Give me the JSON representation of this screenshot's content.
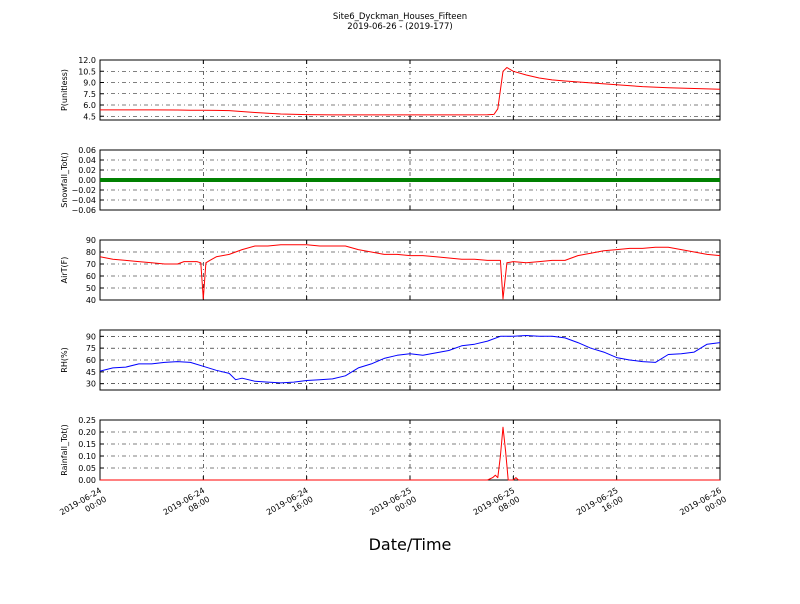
{
  "figure": {
    "title": "Site6_Dyckman_Houses_Fifteen",
    "subtitle": "2019-06-26 - (2019-177)",
    "xlabel": "Date/Time"
  },
  "chart_data": [
    {
      "type": "line",
      "ylabel": "P(unitless)",
      "ylim": [
        4.0,
        12.0
      ],
      "yticks": [
        "12.0",
        "10.5",
        "9.0",
        "7.5",
        "6.0",
        "4.5"
      ],
      "ytick_values": [
        12.0,
        10.5,
        9.0,
        7.5,
        6.0,
        4.5
      ],
      "color": "#ff0000",
      "grid": true,
      "series": [
        {
          "x": [
            0,
            2,
            4,
            6,
            7,
            8,
            9,
            10,
            12,
            14,
            16,
            18,
            20,
            22,
            24,
            26,
            28,
            30,
            30.5,
            30.8,
            31,
            31.2,
            31.5,
            32,
            33,
            34,
            35,
            36,
            38,
            40,
            42,
            44,
            46,
            48
          ],
          "values": [
            5.35,
            5.35,
            5.35,
            5.33,
            5.3,
            5.3,
            5.28,
            5.25,
            5.0,
            4.8,
            4.72,
            4.68,
            4.68,
            4.68,
            4.68,
            4.68,
            4.68,
            4.7,
            4.75,
            5.5,
            8.0,
            10.5,
            11.0,
            10.5,
            10.0,
            9.6,
            9.35,
            9.2,
            8.95,
            8.7,
            8.45,
            8.3,
            8.2,
            8.1
          ]
        }
      ]
    },
    {
      "type": "line",
      "ylabel": "Snowfall_Tot()",
      "ylim": [
        -0.06,
        0.06
      ],
      "yticks": [
        "0.06",
        "0.04",
        "0.02",
        "0.00",
        "−0.02",
        "−0.04",
        "−0.06"
      ],
      "ytick_values": [
        0.06,
        0.04,
        0.02,
        0.0,
        -0.02,
        -0.04,
        -0.06
      ],
      "color": "#008000",
      "grid": true,
      "series": [
        {
          "x": [
            0,
            48
          ],
          "values": [
            0.0,
            0.0
          ]
        }
      ]
    },
    {
      "type": "line",
      "ylabel": "AirT(F)",
      "ylim": [
        40,
        90
      ],
      "yticks": [
        "90",
        "80",
        "70",
        "60",
        "50",
        "40"
      ],
      "ytick_values": [
        90,
        80,
        70,
        60,
        50,
        40
      ],
      "color": "#ff0000",
      "grid": true,
      "series": [
        {
          "x": [
            0,
            1,
            2,
            3,
            4,
            5,
            6,
            6.5,
            7,
            7.5,
            7.8,
            8.0,
            8.2,
            8.5,
            9,
            10,
            11,
            12,
            13,
            14,
            15,
            16,
            17,
            18,
            19,
            20,
            21,
            22,
            23,
            24,
            25,
            26,
            27,
            28,
            29,
            30,
            31.0,
            31.2,
            31.5,
            32,
            33,
            34,
            35,
            36,
            37,
            38,
            39,
            40,
            41,
            42,
            43,
            44,
            45,
            46,
            47,
            48
          ],
          "values": [
            76,
            74,
            73,
            72,
            71,
            70,
            70,
            72,
            72,
            72,
            71,
            41,
            71,
            73,
            76,
            78,
            82,
            85,
            85,
            86,
            86,
            86,
            85,
            85,
            85,
            82,
            80,
            78,
            78,
            77,
            77,
            76,
            75,
            74,
            74,
            73,
            73,
            41,
            71,
            72,
            71,
            72,
            73,
            73,
            77,
            79,
            81,
            82,
            83,
            83,
            84,
            84,
            82,
            80,
            78,
            77
          ]
        }
      ]
    },
    {
      "type": "line",
      "ylabel": "RH(%)",
      "ylim": [
        22,
        98
      ],
      "yticks": [
        "90",
        "75",
        "60",
        "45",
        "30"
      ],
      "ytick_values": [
        90,
        75,
        60,
        45,
        30
      ],
      "color": "#0000ff",
      "grid": true,
      "series": [
        {
          "x": [
            0,
            1,
            2,
            3,
            4,
            5,
            6,
            7,
            8,
            9,
            10,
            10.5,
            11,
            12,
            13,
            14,
            15,
            16,
            17,
            18,
            19,
            20,
            21,
            22,
            23,
            24,
            25,
            26,
            27,
            28,
            29,
            30,
            31,
            32,
            33,
            34,
            35,
            36,
            37,
            38,
            39,
            40,
            41,
            42,
            43,
            44,
            45,
            46,
            47,
            48
          ],
          "values": [
            46,
            50,
            51,
            55,
            55,
            57,
            58,
            57,
            52,
            47,
            43,
            35,
            37,
            33,
            32,
            31,
            32,
            34,
            35,
            36,
            40,
            50,
            55,
            62,
            66,
            68,
            66,
            69,
            72,
            78,
            80,
            84,
            90,
            90,
            91,
            90,
            90,
            88,
            82,
            75,
            70,
            63,
            60,
            58,
            57,
            67,
            68,
            70,
            80,
            82
          ]
        }
      ]
    },
    {
      "type": "line",
      "ylabel": "Rainfall_Tot()",
      "ylim": [
        -0.0,
        0.25
      ],
      "yticks": [
        "0.25",
        "0.20",
        "0.15",
        "0.10",
        "0.05",
        "0.00"
      ],
      "ytick_values": [
        0.25,
        0.2,
        0.15,
        0.1,
        0.05,
        0.0
      ],
      "color": "#ff0000",
      "grid": true,
      "series": [
        {
          "x": [
            0,
            30.0,
            30.4,
            30.6,
            30.8,
            31.0,
            31.2,
            31.4,
            31.6,
            31.8,
            32.0,
            32.2,
            32.4,
            32.6,
            33,
            48
          ],
          "values": [
            0,
            0,
            0.01,
            0.02,
            0.01,
            0.1,
            0.22,
            0.12,
            0.0,
            0.0,
            0.0,
            0.01,
            0.0,
            0.0,
            0,
            0
          ]
        }
      ]
    }
  ],
  "xaxis": {
    "range": [
      0,
      48
    ],
    "tick_values": [
      0,
      8,
      16,
      24,
      32,
      40,
      48
    ],
    "tick_labels": [
      [
        "2019-06-24",
        "00:00"
      ],
      [
        "2019-06-24",
        "08:00"
      ],
      [
        "2019-06-24",
        "16:00"
      ],
      [
        "2019-06-25",
        "00:00"
      ],
      [
        "2019-06-25",
        "08:00"
      ],
      [
        "2019-06-25",
        "16:00"
      ],
      [
        "2019-06-26",
        "00:00"
      ]
    ]
  }
}
